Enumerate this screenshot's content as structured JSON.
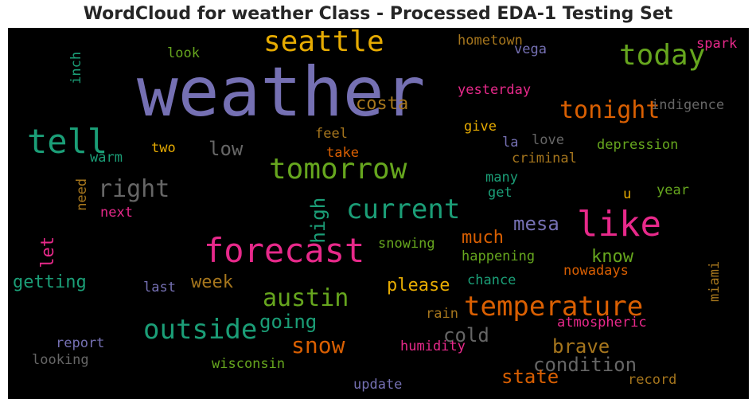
{
  "chart_data": {
    "type": "wordcloud",
    "title": "WordCloud for weather Class - Processed EDA-1 Testing Set",
    "background": "#000000",
    "colors": {
      "purple": "#7570b3",
      "teal": "#1b9e77",
      "green": "#66a61e",
      "orange": "#d95f02",
      "pink": "#e7298a",
      "gold": "#e6ab02",
      "brown": "#a6761d",
      "gray": "#666666"
    },
    "words": [
      {
        "text": "weather",
        "color": "purple"
      },
      {
        "text": "seattle",
        "color": "gold"
      },
      {
        "text": "today",
        "color": "green"
      },
      {
        "text": "hometown",
        "color": "brown"
      },
      {
        "text": "vega",
        "color": "purple"
      },
      {
        "text": "spark",
        "color": "pink"
      },
      {
        "text": "look",
        "color": "green"
      },
      {
        "text": "inch",
        "color": "teal"
      },
      {
        "text": "yesterday",
        "color": "pink"
      },
      {
        "text": "costa",
        "color": "brown"
      },
      {
        "text": "tonight",
        "color": "orange"
      },
      {
        "text": "indigence",
        "color": "gray"
      },
      {
        "text": "tell",
        "color": "teal"
      },
      {
        "text": "feel",
        "color": "brown"
      },
      {
        "text": "give",
        "color": "gold"
      },
      {
        "text": "two",
        "color": "gold"
      },
      {
        "text": "low",
        "color": "gray"
      },
      {
        "text": "take",
        "color": "orange"
      },
      {
        "text": "la",
        "color": "purple"
      },
      {
        "text": "love",
        "color": "gray"
      },
      {
        "text": "depression",
        "color": "green"
      },
      {
        "text": "warm",
        "color": "teal"
      },
      {
        "text": "tomorrow",
        "color": "green"
      },
      {
        "text": "criminal",
        "color": "brown"
      },
      {
        "text": "need",
        "color": "brown"
      },
      {
        "text": "right",
        "color": "gray"
      },
      {
        "text": "many",
        "color": "teal"
      },
      {
        "text": "get",
        "color": "teal"
      },
      {
        "text": "u",
        "color": "gold"
      },
      {
        "text": "year",
        "color": "green"
      },
      {
        "text": "next",
        "color": "pink"
      },
      {
        "text": "high",
        "color": "teal"
      },
      {
        "text": "current",
        "color": "teal"
      },
      {
        "text": "like",
        "color": "pink"
      },
      {
        "text": "mesa",
        "color": "purple"
      },
      {
        "text": "let",
        "color": "pink"
      },
      {
        "text": "forecast",
        "color": "pink"
      },
      {
        "text": "much",
        "color": "orange"
      },
      {
        "text": "snowing",
        "color": "green"
      },
      {
        "text": "know",
        "color": "green"
      },
      {
        "text": "happening",
        "color": "green"
      },
      {
        "text": "miami",
        "color": "brown"
      },
      {
        "text": "getting",
        "color": "teal"
      },
      {
        "text": "week",
        "color": "brown"
      },
      {
        "text": "chance",
        "color": "teal"
      },
      {
        "text": "nowadays",
        "color": "orange"
      },
      {
        "text": "last",
        "color": "purple"
      },
      {
        "text": "please",
        "color": "gold"
      },
      {
        "text": "austin",
        "color": "green"
      },
      {
        "text": "temperature",
        "color": "orange"
      },
      {
        "text": "rain",
        "color": "brown"
      },
      {
        "text": "outside",
        "color": "teal"
      },
      {
        "text": "going",
        "color": "teal"
      },
      {
        "text": "atmospheric",
        "color": "pink"
      },
      {
        "text": "cold",
        "color": "gray"
      },
      {
        "text": "report",
        "color": "purple"
      },
      {
        "text": "snow",
        "color": "orange"
      },
      {
        "text": "humidity",
        "color": "pink"
      },
      {
        "text": "brave",
        "color": "brown"
      },
      {
        "text": "looking",
        "color": "gray"
      },
      {
        "text": "wisconsin",
        "color": "green"
      },
      {
        "text": "condition",
        "color": "gray"
      },
      {
        "text": "state",
        "color": "orange"
      },
      {
        "text": "update",
        "color": "purple"
      },
      {
        "text": "record",
        "color": "brown"
      }
    ]
  }
}
